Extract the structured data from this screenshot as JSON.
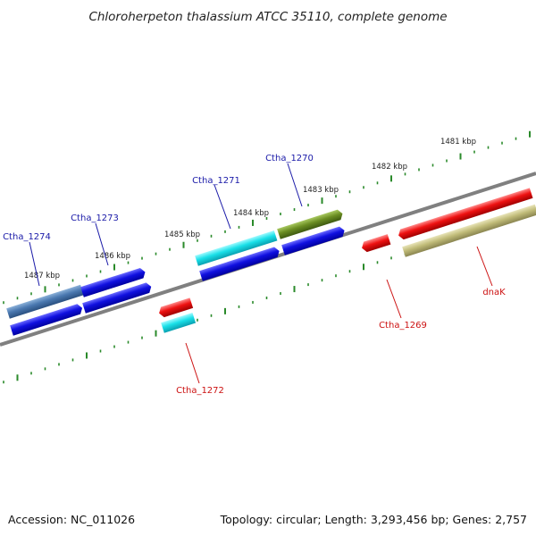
{
  "title": "Chloroherpeton thalassium ATCC 35110, complete genome",
  "footer": {
    "accession": "Accession: NC_011026",
    "summary": "Topology: circular; Length: 3,293,456 bp; Genes: 2,757"
  },
  "colors": {
    "backbone": "#808080",
    "tick": "#2a8a2a",
    "forward_label": "#1a1aa8",
    "reverse_label": "#cc1111",
    "blue": "#1010e0",
    "steelblue": "#4a78b0",
    "cyan": "#19e0e8",
    "olive": "#6b8e23",
    "red": "#ee1111",
    "khaki": "#c0bb78"
  },
  "scale_labels": [
    "1481 kbp",
    "1482 kbp",
    "1483 kbp",
    "1484 kbp",
    "1485 kbp",
    "1486 kbp",
    "1487 kbp"
  ],
  "forward_labels": [
    "Ctha_1274",
    "Ctha_1273",
    "Ctha_1271",
    "Ctha_1270"
  ],
  "reverse_labels": [
    "Ctha_1272",
    "Ctha_1269",
    "dnaK"
  ]
}
